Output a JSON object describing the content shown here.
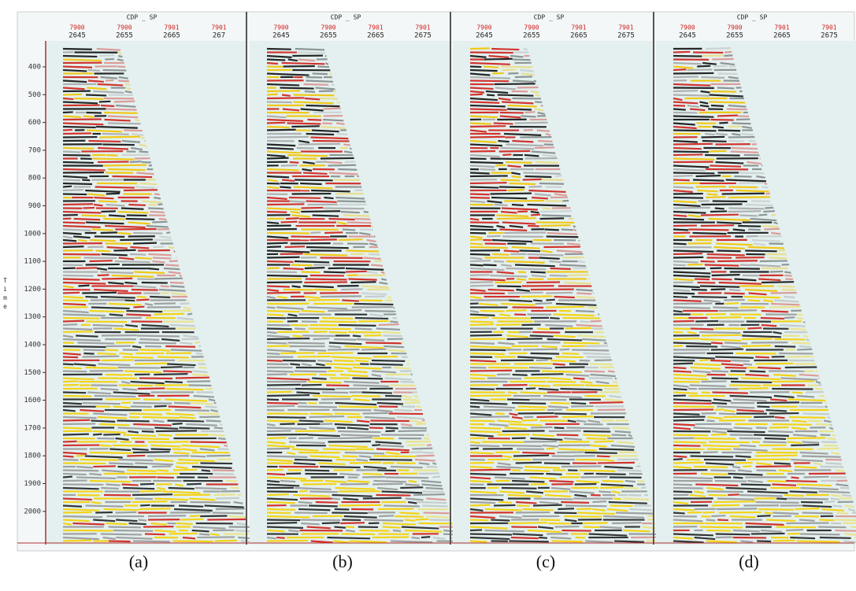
{
  "time_axis": {
    "label": "Time",
    "ticks": [
      "400",
      "500",
      "600",
      "700",
      "800",
      "900",
      "1000",
      "1100",
      "1200",
      "1300",
      "1400",
      "1500",
      "1600",
      "1700",
      "1800",
      "1900",
      "2000"
    ]
  },
  "panels": [
    {
      "header": "CDP _ SP",
      "top_labels": [
        "7900",
        "7900",
        "7901",
        "7901"
      ],
      "bottom_labels": [
        "2645",
        "2655",
        "2665",
        "267"
      ],
      "caption": "(a)"
    },
    {
      "header": "CDP _ SP",
      "top_labels": [
        "7900",
        "7900",
        "7901",
        "7901"
      ],
      "bottom_labels": [
        "2645",
        "2655",
        "2665",
        "2675"
      ],
      "caption": "(b)"
    },
    {
      "header": "CDP _ SP",
      "top_labels": [
        "7900",
        "7900",
        "7901",
        "7901"
      ],
      "bottom_labels": [
        "2645",
        "2655",
        "2665",
        "2675"
      ],
      "caption": "(c)"
    },
    {
      "header": "CDP _ SP",
      "top_labels": [
        "7900",
        "7900",
        "7901",
        "7901"
      ],
      "bottom_labels": [
        "2645",
        "2655",
        "2665",
        "2675"
      ],
      "caption": "(d)"
    }
  ]
}
